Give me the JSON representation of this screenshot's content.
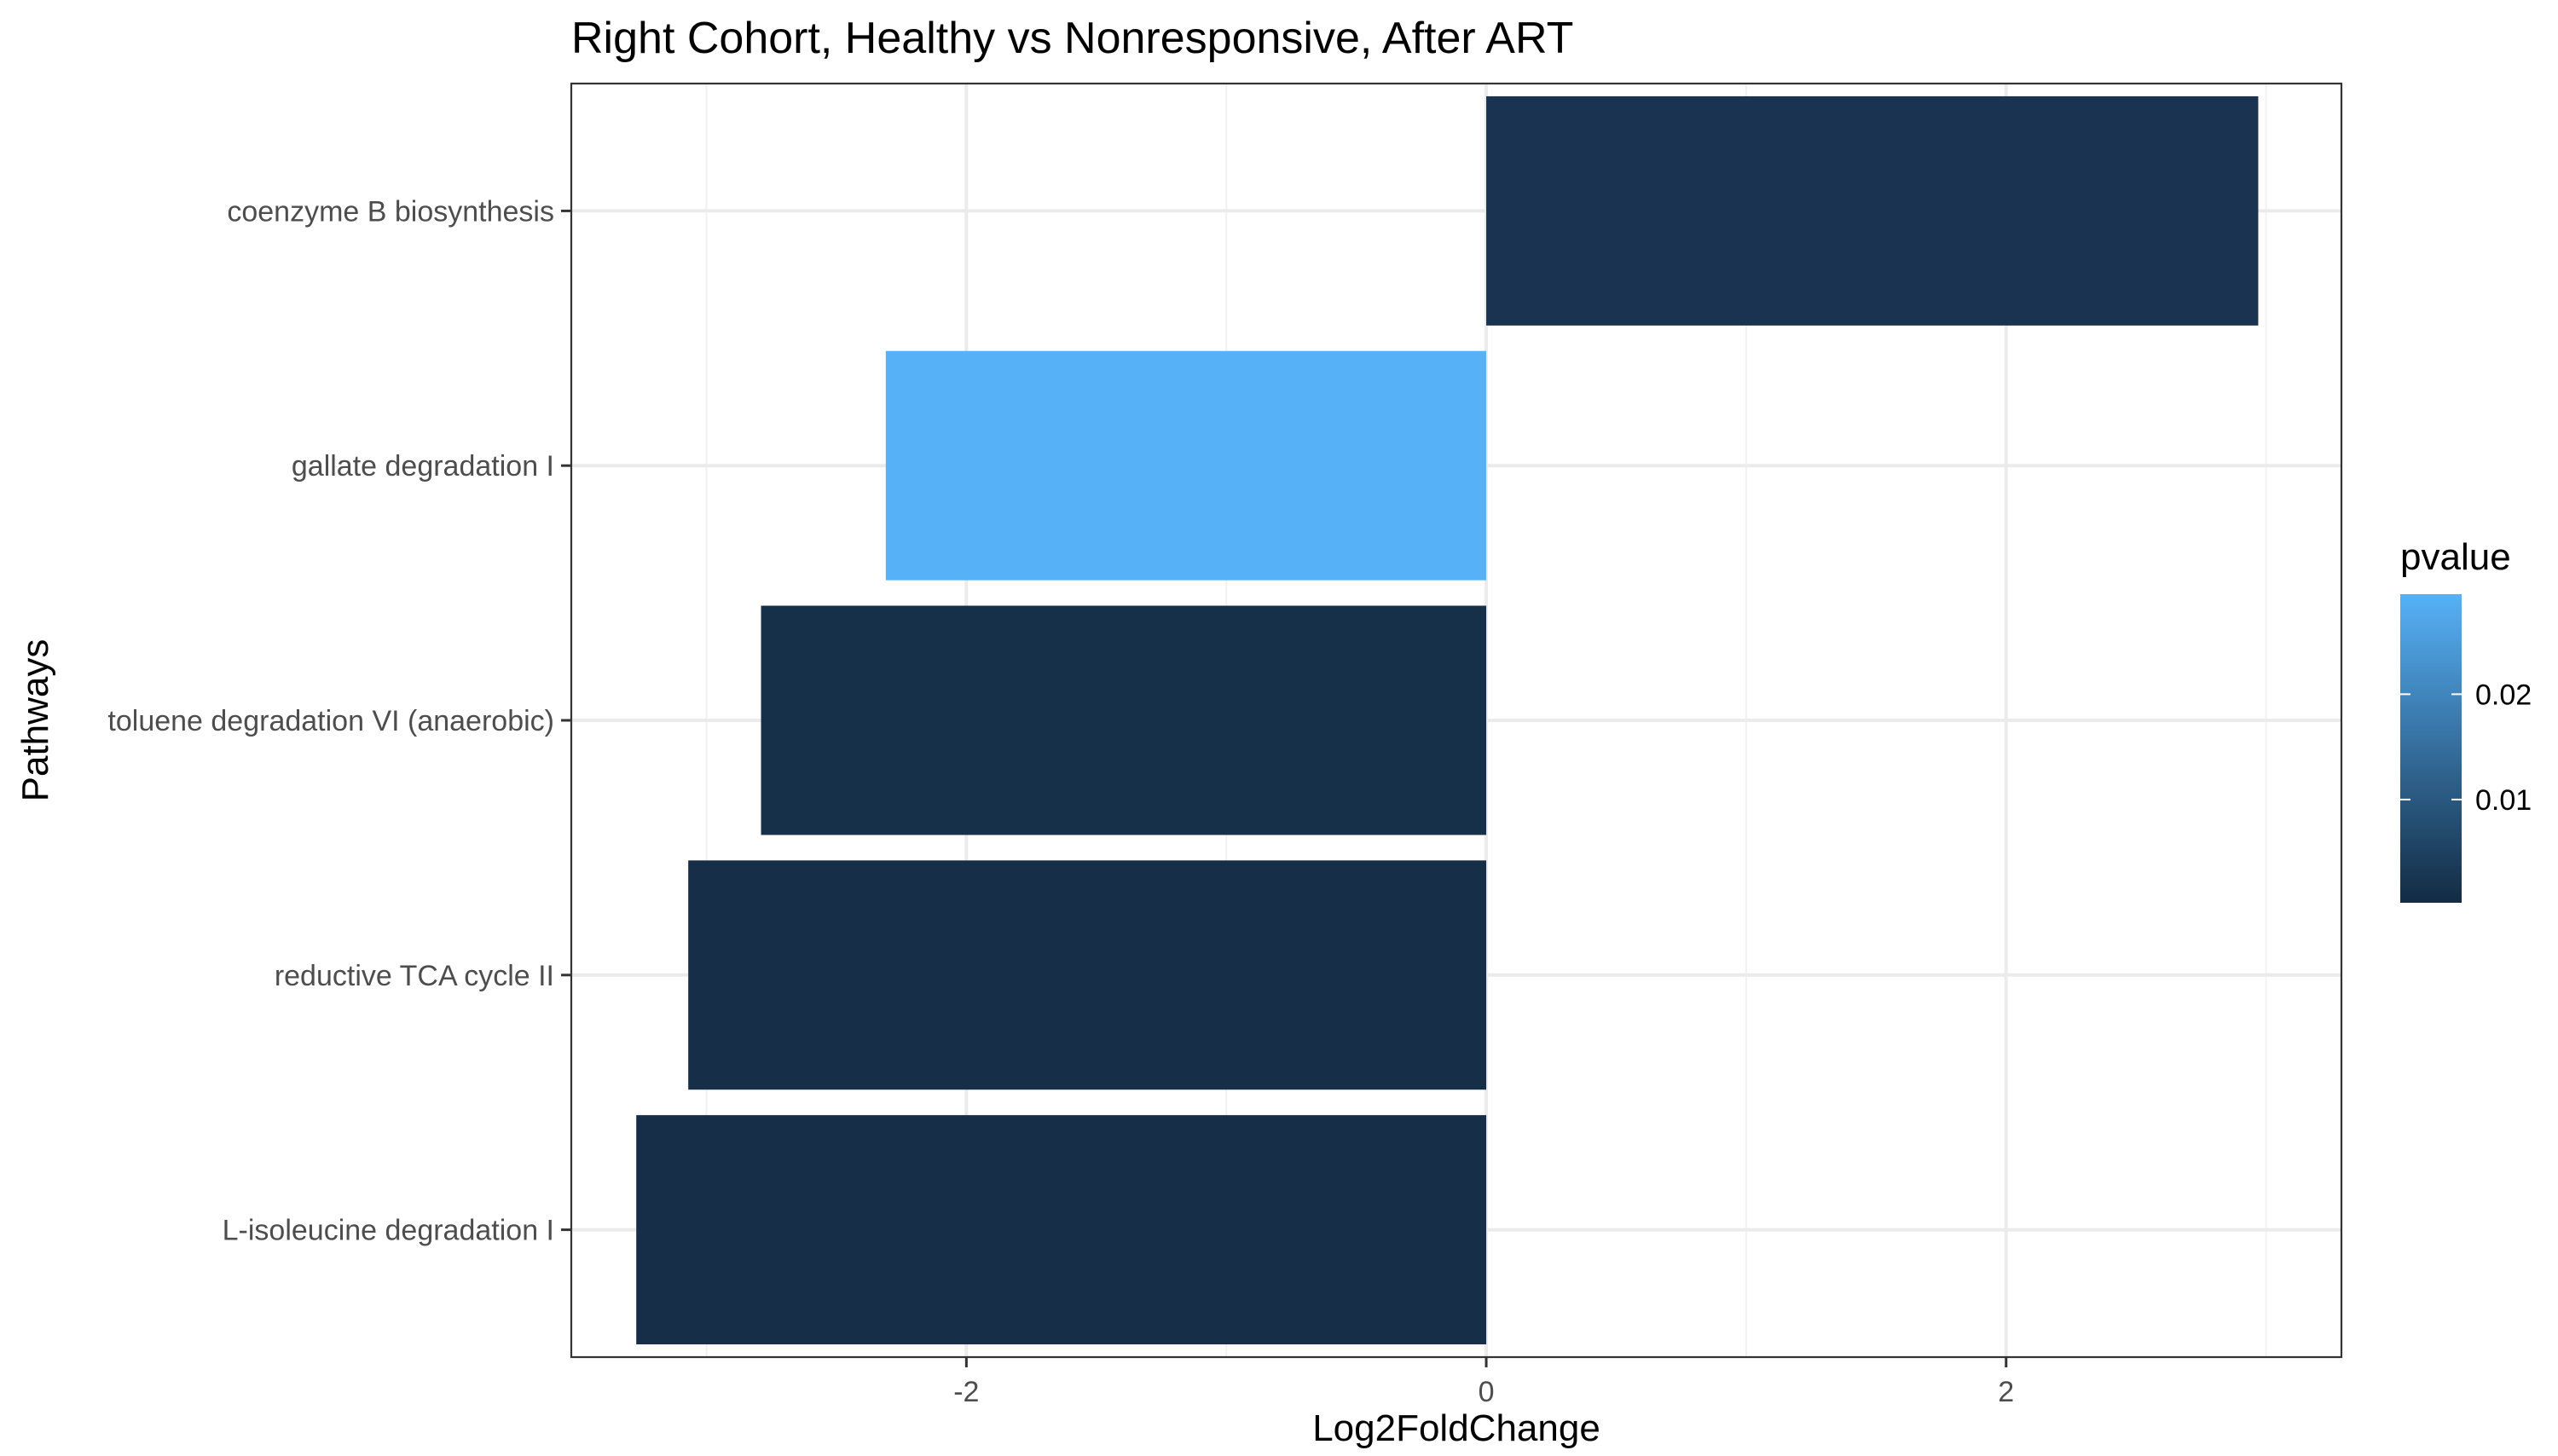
{
  "chart_data": {
    "type": "bar",
    "orientation": "horizontal",
    "title": "Right Cohort, Healthy vs Nonresponsive, After ART",
    "xlabel": "Log2FoldChange",
    "ylabel": "Pathways",
    "xlim": [
      -3.52,
      3.29
    ],
    "xticks": [
      -2,
      0,
      2
    ],
    "xtick_labels": [
      "-2",
      "0",
      "2"
    ],
    "grid": true,
    "categories": [
      "coenzyme B biosynthesis",
      "gallate degradation I",
      "toluene degradation VI (anaerobic)",
      "reductive TCA cycle II",
      "L-isoleucine degradation I"
    ],
    "values": [
      2.97,
      -2.31,
      -2.79,
      -3.07,
      -3.27
    ],
    "pvalues": [
      0.0005,
      0.0295,
      0.0008,
      0.0004,
      0.0004
    ],
    "colors": [
      "#1a3350",
      "#56b1f7",
      "#173049",
      "#162e48",
      "#162e48"
    ],
    "legend": {
      "title": "pvalue",
      "position": "right",
      "ticks": [
        0.01,
        0.02
      ],
      "tick_labels": [
        "0.01",
        "0.02"
      ],
      "range": [
        0.0002,
        0.0295
      ],
      "color_low": "#132b43",
      "color_high": "#56b1f7"
    }
  }
}
